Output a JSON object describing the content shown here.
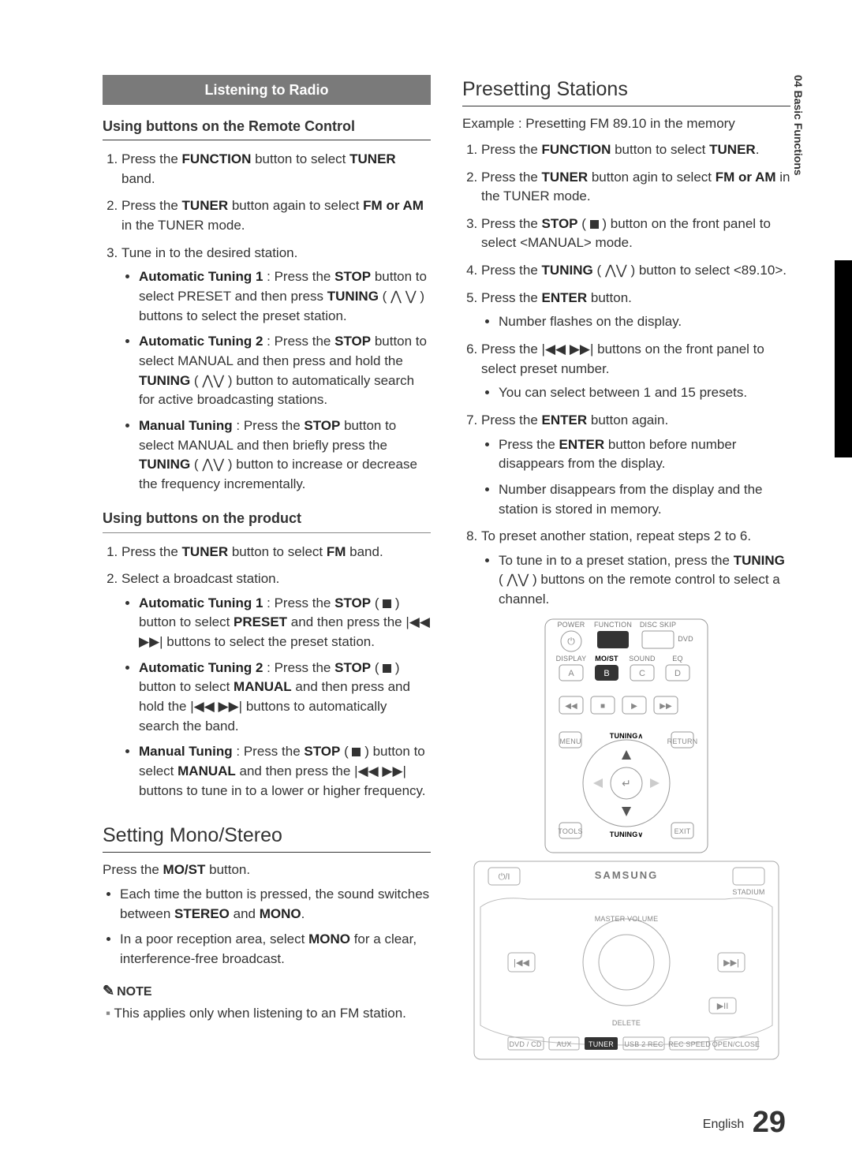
{
  "sideTab": "04  Basic Functions",
  "banner": "Listening to Radio",
  "left": {
    "sub1": "Using buttons on the Remote Control",
    "ol1": [
      "Press the <b>FUNCTION</b> button to select <b>TUNER</b> band.",
      "Press the <b>TUNER</b> button again to select <b>FM or AM</b> in the TUNER mode.",
      "Tune in to the desired station."
    ],
    "ol1_sub": [
      "<b>Automatic Tuning 1</b> : Press the <b>STOP</b> button to select PRESET and then press <b>TUNING</b> ( <span class='glyph'>&#8896;</span> <span class='glyph'>&#8897;</span> ) buttons to select the preset station.",
      "<b>Automatic Tuning 2</b> : Press the <b>STOP</b> button to select MANUAL and then press and hold the <b>TUNING</b> ( <span class='glyph'>&#8896;&#8897;</span> ) button to automatically search for active broadcasting stations.",
      "<b>Manual Tuning</b> : Press the <b>STOP</b> button to select MANUAL and then briefly press the <b>TUNING</b> ( <span class='glyph'>&#8896;&#8897;</span> ) button to increase or decrease the frequency incrementally."
    ],
    "sub2": "Using buttons on the product",
    "ol2": [
      "Press the <b>TUNER</b> button to select <b>FM</b> band.",
      "Select a broadcast station."
    ],
    "ol2_sub": [
      "<b>Automatic Tuning 1</b> : Press the <b>STOP</b> ( <span class='stop-sq'></span> ) button to select <b>PRESET</b> and then press the <span class='glyph'>|◀◀ ▶▶|</span> buttons to select the preset station.",
      "<b>Automatic Tuning 2</b> : Press the <b>STOP</b> ( <span class='stop-sq'></span> ) button to select <b>MANUAL</b> and then press and hold the <span class='glyph'>|◀◀ ▶▶|</span> buttons to automatically search the band.",
      "<b>Manual Tuning</b> : Press the <b>STOP</b> ( <span class='stop-sq'></span> ) button to select <b>MANUAL</b> and then press the <span class='glyph'>|◀◀ ▶▶|</span> buttons to tune in to a lower or higher frequency."
    ],
    "h2a": "Setting Mono/Stereo",
    "mono_intro": "Press the <b>MO/ST</b> button.",
    "mono_bul": [
      "Each time the button is pressed, the sound switches between <b>STEREO</b> and <b>MONO</b>.",
      "In a poor reception area, select <b>MONO</b> for a clear, interference-free broadcast."
    ],
    "note_head": "NOTE",
    "note_item": "This applies only when listening to an FM station."
  },
  "right": {
    "h2": "Presetting Stations",
    "example": "Example : Presetting FM 89.10 in the memory",
    "ol": [
      "Press the <b>FUNCTION</b> button to select <b>TUNER</b>.",
      "Press the <b>TUNER</b> button agin to select <b>FM or AM</b> in the TUNER mode.",
      "Press the <b>STOP</b> ( <span class='stop-sq'></span> ) button on the front panel to select &lt;MANUAL&gt; mode.",
      "Press the <b>TUNING</b> ( <span class='glyph'>&#8896;&#8897;</span> ) button to select &lt;89.10&gt;.",
      "Press the <b>ENTER</b> button.",
      "Press the <span class='glyph'>|◀◀ ▶▶|</span> buttons on the front panel to select preset number.",
      "Press the <b>ENTER</b> button again.",
      "To preset another station, repeat steps 2 to 6."
    ],
    "sub": {
      "5": [
        "Number flashes on the display."
      ],
      "6": [
        "You can select between 1 and 15 presets."
      ],
      "7": [
        "Press the <b>ENTER</b> button before number disappears from the display.",
        "Number disappears from the display and the station is stored in memory."
      ],
      "8": [
        "To tune in to a preset station, press the <b>TUNING</b> ( <span class='glyph'>&#8896;&#8897;</span> ) buttons on the remote control to select a channel."
      ]
    },
    "remote_labels": {
      "row1": [
        "POWER",
        "FUNCTION",
        "DISC SKIP",
        "DVD"
      ],
      "row2_hdr": [
        "DISPLAY",
        "MO/ST",
        "SOUND",
        "EQ"
      ],
      "row2": [
        "A",
        "B",
        "C",
        "D"
      ],
      "tuning_up": "TUNING",
      "tuning_dn": "TUNING",
      "menu": "MENU",
      "return": "RETURN",
      "tools": "TOOLS",
      "exit": "EXIT"
    },
    "unit_brand": "SAMSUNG",
    "unit_labels": [
      "DVD / CD",
      "AUX",
      "TUNER",
      "USB 2 REC",
      "REC SPEED",
      "OPEN/CLOSE",
      "MASTER VOLUME",
      "STADIUM",
      "DELETE"
    ]
  },
  "footer_lang": "English",
  "footer_page": "29"
}
